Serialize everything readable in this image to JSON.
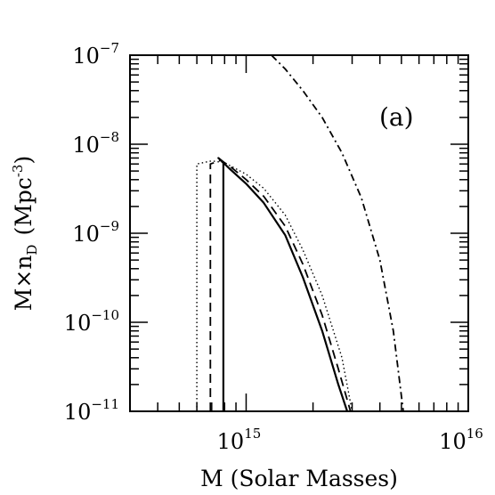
{
  "chart_data": {
    "type": "line",
    "panel_label": "(a)",
    "xlabel": "M (Solar Masses)",
    "ylabel_main": "M×n",
    "ylabel_sub": "D",
    "ylabel_unit": "(Mpc",
    "ylabel_unit_exp": "-3",
    "ylabel_close": ")",
    "x_scale": "log",
    "y_scale": "log",
    "xlim": [
      300000000000000.0,
      1e+16
    ],
    "ylim": [
      1e-11,
      1e-07
    ],
    "grid": false,
    "x_tick_labels": [
      {
        "value": 1000000000000000.0,
        "base": "10",
        "exp": "15"
      },
      {
        "value": 1e+16,
        "base": "10",
        "exp": "16"
      }
    ],
    "y_tick_labels": [
      {
        "value": 1e-07,
        "base": "10",
        "exp": "−7"
      },
      {
        "value": 1e-08,
        "base": "10",
        "exp": "−8"
      },
      {
        "value": 1e-09,
        "base": "10",
        "exp": "−9"
      },
      {
        "value": 1e-10,
        "base": "10",
        "exp": "−10"
      },
      {
        "value": 1e-11,
        "base": "10",
        "exp": "−11"
      }
    ],
    "series": [
      {
        "style": "solid",
        "x": [
          790000000000000.0,
          790000000000000.0,
          750000000000000.0,
          850000000000000.0,
          1000000000000000.0,
          1200000000000000.0,
          1500000000000000.0,
          1800000000000000.0,
          2200000000000000.0,
          2600000000000000.0,
          2850000000000000.0
        ],
        "y": [
          1e-11,
          6.3e-09,
          7e-09,
          5.2e-09,
          3.6e-09,
          2.2e-09,
          9.5e-10,
          3.2e-10,
          8e-11,
          2e-11,
          1e-11
        ]
      },
      {
        "style": "dashed",
        "x": [
          690000000000000.0,
          690000000000000.0,
          770000000000000.0,
          850000000000000.0,
          1000000000000000.0,
          1200000000000000.0,
          1500000000000000.0,
          1800000000000000.0,
          2200000000000000.0,
          2600000000000000.0,
          2950000000000000.0
        ],
        "y": [
          1e-11,
          6e-09,
          6.6e-09,
          5.6e-09,
          4e-09,
          2.6e-09,
          1.2e-09,
          4.5e-10,
          1.2e-10,
          3e-11,
          1e-11
        ]
      },
      {
        "style": "dotted",
        "x": [
          600000000000000.0,
          600000000000000.0,
          700000000000000.0,
          800000000000000.0,
          1000000000000000.0,
          1200000000000000.0,
          1500000000000000.0,
          1800000000000000.0,
          2200000000000000.0,
          2700000000000000.0,
          3000000000000000.0
        ],
        "y": [
          1e-11,
          6e-09,
          6.5e-09,
          6.2e-09,
          4.6e-09,
          3.2e-09,
          1.6e-09,
          6.5e-10,
          2e-10,
          4e-11,
          1e-11
        ]
      },
      {
        "style": "dashdot",
        "x": [
          1300000000000000.0,
          1500000000000000.0,
          1800000000000000.0,
          2200000000000000.0,
          2700000000000000.0,
          3300000000000000.0,
          4000000000000000.0,
          4600000000000000.0,
          5100000000000000.0
        ],
        "y": [
          1e-07,
          7e-08,
          4e-08,
          2e-08,
          8e-09,
          2.5e-09,
          5e-10,
          8e-11,
          1e-11
        ]
      }
    ]
  }
}
